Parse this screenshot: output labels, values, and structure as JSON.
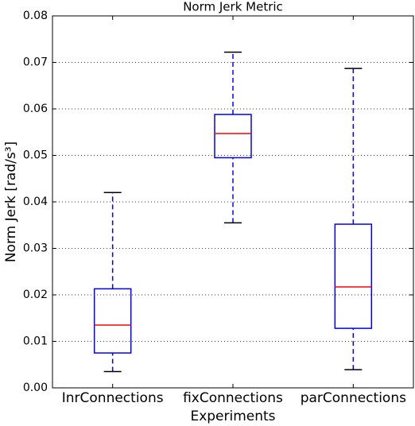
{
  "chart_data": {
    "type": "box",
    "title": "Norm Jerk Metric",
    "xlabel": "Experiments",
    "ylabel": "Norm Jerk [rad/s³]",
    "categories": [
      "InrConnections",
      "fixConnections",
      "parConnections"
    ],
    "boxes": [
      {
        "low": 0.0035,
        "q1": 0.0075,
        "median": 0.0135,
        "q3": 0.0213,
        "high": 0.042
      },
      {
        "low": 0.0355,
        "q1": 0.0495,
        "median": 0.0547,
        "q3": 0.0588,
        "high": 0.0722
      },
      {
        "low": 0.0039,
        "q1": 0.0128,
        "median": 0.0217,
        "q3": 0.0352,
        "high": 0.0687
      }
    ],
    "box_color": "#0000ff",
    "median_color": "#ff0000",
    "cap_color": "#000000",
    "ylim": [
      0,
      0.08
    ],
    "yticks": [
      {
        "value": 0,
        "label": "0.00"
      },
      0.01,
      0.02,
      0.03,
      0.04,
      0.05,
      0.06,
      0.07,
      0.08
    ],
    "grid": true
  }
}
